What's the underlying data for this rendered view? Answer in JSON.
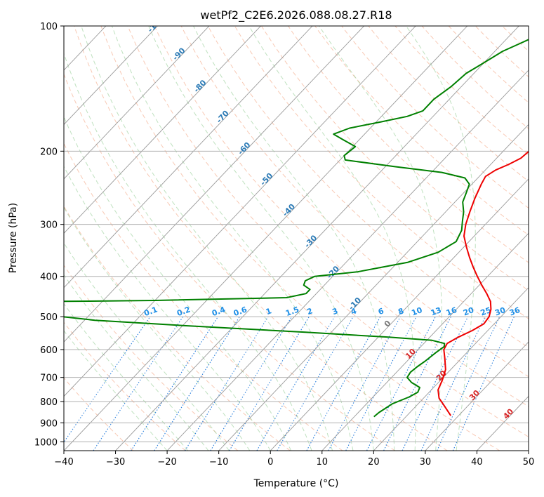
{
  "chart_data": {
    "type": "line",
    "title": "wetPf2_C2E6.2026.088.08.27.R18",
    "xlabel": "Temperature (°C)",
    "ylabel": "Pressure (hPa)",
    "xlim": [
      -40,
      50
    ],
    "ylim": [
      1050,
      100
    ],
    "y_scale": "log",
    "grid": true,
    "x_ticks": [
      "−40",
      "−30",
      "−20",
      "−10",
      "0",
      "10",
      "20",
      "30",
      "40",
      "50"
    ],
    "x_tick_values": [
      -40,
      -30,
      -20,
      -10,
      0,
      10,
      20,
      30,
      40,
      50
    ],
    "y_ticks": [
      "100",
      "200",
      "300",
      "400",
      "500",
      "600",
      "700",
      "800",
      "900",
      "1000"
    ],
    "y_tick_values": [
      100,
      200,
      300,
      400,
      500,
      600,
      700,
      800,
      900,
      1000
    ],
    "skew_isotherms": true,
    "dry_adiabats": "dashed, light red",
    "moist_adiabats": "dashed, light green",
    "mixing_ratio_lines": "dotted, blue",
    "isotherm_labels": [
      {
        "t": -100,
        "text": "-100"
      },
      {
        "t": -90,
        "text": "-90"
      },
      {
        "t": -80,
        "text": "-80"
      },
      {
        "t": -70,
        "text": "-70"
      },
      {
        "t": -60,
        "text": "-60"
      },
      {
        "t": -50,
        "text": "-50"
      },
      {
        "t": -40,
        "text": "-40"
      },
      {
        "t": -30,
        "text": "-30"
      },
      {
        "t": -20,
        "text": "-20"
      },
      {
        "t": -10,
        "text": "-10"
      }
    ],
    "isotherm_labels_warm": [
      {
        "t": 0,
        "p": 525,
        "text": "0"
      },
      {
        "t": 10,
        "p": 620,
        "text": "10"
      },
      {
        "t": 20,
        "p": 700,
        "text": "20"
      },
      {
        "t": 30,
        "p": 780,
        "text": "30"
      },
      {
        "t": 40,
        "p": 865,
        "text": "40"
      }
    ],
    "mixing_ratio_labels": [
      "0.1",
      "0.2",
      "0.4",
      "0.6",
      "1",
      "1.5",
      "2",
      "3",
      "4",
      "6",
      "8",
      "10",
      "13",
      "16",
      "20",
      "25",
      "30",
      "36"
    ],
    "mixing_ratio_values": [
      0.1,
      0.2,
      0.4,
      0.6,
      1,
      1.5,
      2,
      3,
      4,
      6,
      8,
      10,
      13,
      16,
      20,
      25,
      30,
      36
    ],
    "series": [
      {
        "color": "#ee0000",
        "points": [
          [
            28.5,
            865
          ],
          [
            25.5,
            820
          ],
          [
            23.0,
            785
          ],
          [
            21.3,
            750
          ],
          [
            20.3,
            710
          ],
          [
            19.0,
            670
          ],
          [
            16.8,
            630
          ],
          [
            15.0,
            600
          ],
          [
            14.5,
            580
          ],
          [
            15.5,
            560
          ],
          [
            17.0,
            540
          ],
          [
            18.0,
            520
          ],
          [
            17.7,
            500
          ],
          [
            16.7,
            480
          ],
          [
            15.2,
            460
          ],
          [
            13.0,
            440
          ],
          [
            10.5,
            420
          ],
          [
            8.0,
            400
          ],
          [
            5.5,
            380
          ],
          [
            3.0,
            360
          ],
          [
            0.5,
            340
          ],
          [
            -2.0,
            320
          ],
          [
            -3.8,
            300
          ],
          [
            -5.3,
            280
          ],
          [
            -6.8,
            260
          ],
          [
            -8.2,
            240
          ],
          [
            -8.8,
            230
          ],
          [
            -8.0,
            222
          ],
          [
            -6.5,
            215
          ],
          [
            -5.3,
            208
          ],
          [
            -5.0,
            200
          ],
          [
            -5.5,
            190
          ],
          [
            -6.3,
            180
          ],
          [
            -7.8,
            170
          ],
          [
            -9.5,
            160
          ],
          [
            -11.2,
            150
          ],
          [
            -12.5,
            140
          ],
          [
            -14.0,
            130
          ],
          [
            -15.5,
            120
          ],
          [
            -17.5,
            110
          ],
          [
            -19.5,
            100
          ]
        ]
      },
      {
        "color": "#008000",
        "points": [
          [
            13.8,
            870
          ],
          [
            14.0,
            850
          ],
          [
            14.5,
            830
          ],
          [
            15.0,
            810
          ],
          [
            17.0,
            780
          ],
          [
            17.8,
            760
          ],
          [
            17.3,
            740
          ],
          [
            14.8,
            720
          ],
          [
            13.0,
            700
          ],
          [
            12.7,
            680
          ],
          [
            13.0,
            660
          ],
          [
            13.5,
            640
          ],
          [
            14.0,
            610
          ],
          [
            14.5,
            590
          ],
          [
            14.0,
            580
          ],
          [
            11.0,
            570
          ],
          [
            2.0,
            560
          ],
          [
            -15.0,
            545
          ],
          [
            -40.0,
            525
          ],
          [
            -58.0,
            510
          ],
          [
            -65.0,
            500
          ],
          [
            -68.5,
            490
          ],
          [
            -71.0,
            480
          ],
          [
            -72.3,
            470
          ],
          [
            -71.3,
            460
          ],
          [
            -50.0,
            457
          ],
          [
            -25.0,
            450
          ],
          [
            -22.0,
            440
          ],
          [
            -22.0,
            430
          ],
          [
            -24.0,
            420
          ],
          [
            -24.5,
            410
          ],
          [
            -23.5,
            400
          ],
          [
            -16.0,
            390
          ],
          [
            -8.0,
            370
          ],
          [
            -4.0,
            350
          ],
          [
            -2.5,
            330
          ],
          [
            -3.5,
            310
          ],
          [
            -5.0,
            295
          ],
          [
            -6.5,
            280
          ],
          [
            -8.5,
            265
          ],
          [
            -9.5,
            252
          ],
          [
            -10.5,
            240
          ],
          [
            -12.5,
            232
          ],
          [
            -18.0,
            225
          ],
          [
            -28.0,
            218
          ],
          [
            -39.0,
            210
          ],
          [
            -40.0,
            205
          ],
          [
            -39.5,
            195
          ],
          [
            -43.0,
            188
          ],
          [
            -46.0,
            182
          ],
          [
            -44.0,
            176
          ],
          [
            -39.0,
            170
          ],
          [
            -35.0,
            165
          ],
          [
            -33.0,
            160
          ],
          [
            -33.0,
            150
          ],
          [
            -32.0,
            140
          ],
          [
            -31.5,
            130
          ],
          [
            -30.5,
            125
          ],
          [
            -29.5,
            120
          ],
          [
            -28.5,
            115
          ],
          [
            -26.5,
            110
          ],
          [
            -24.5,
            105
          ],
          [
            -22.5,
            100
          ]
        ]
      }
    ]
  }
}
